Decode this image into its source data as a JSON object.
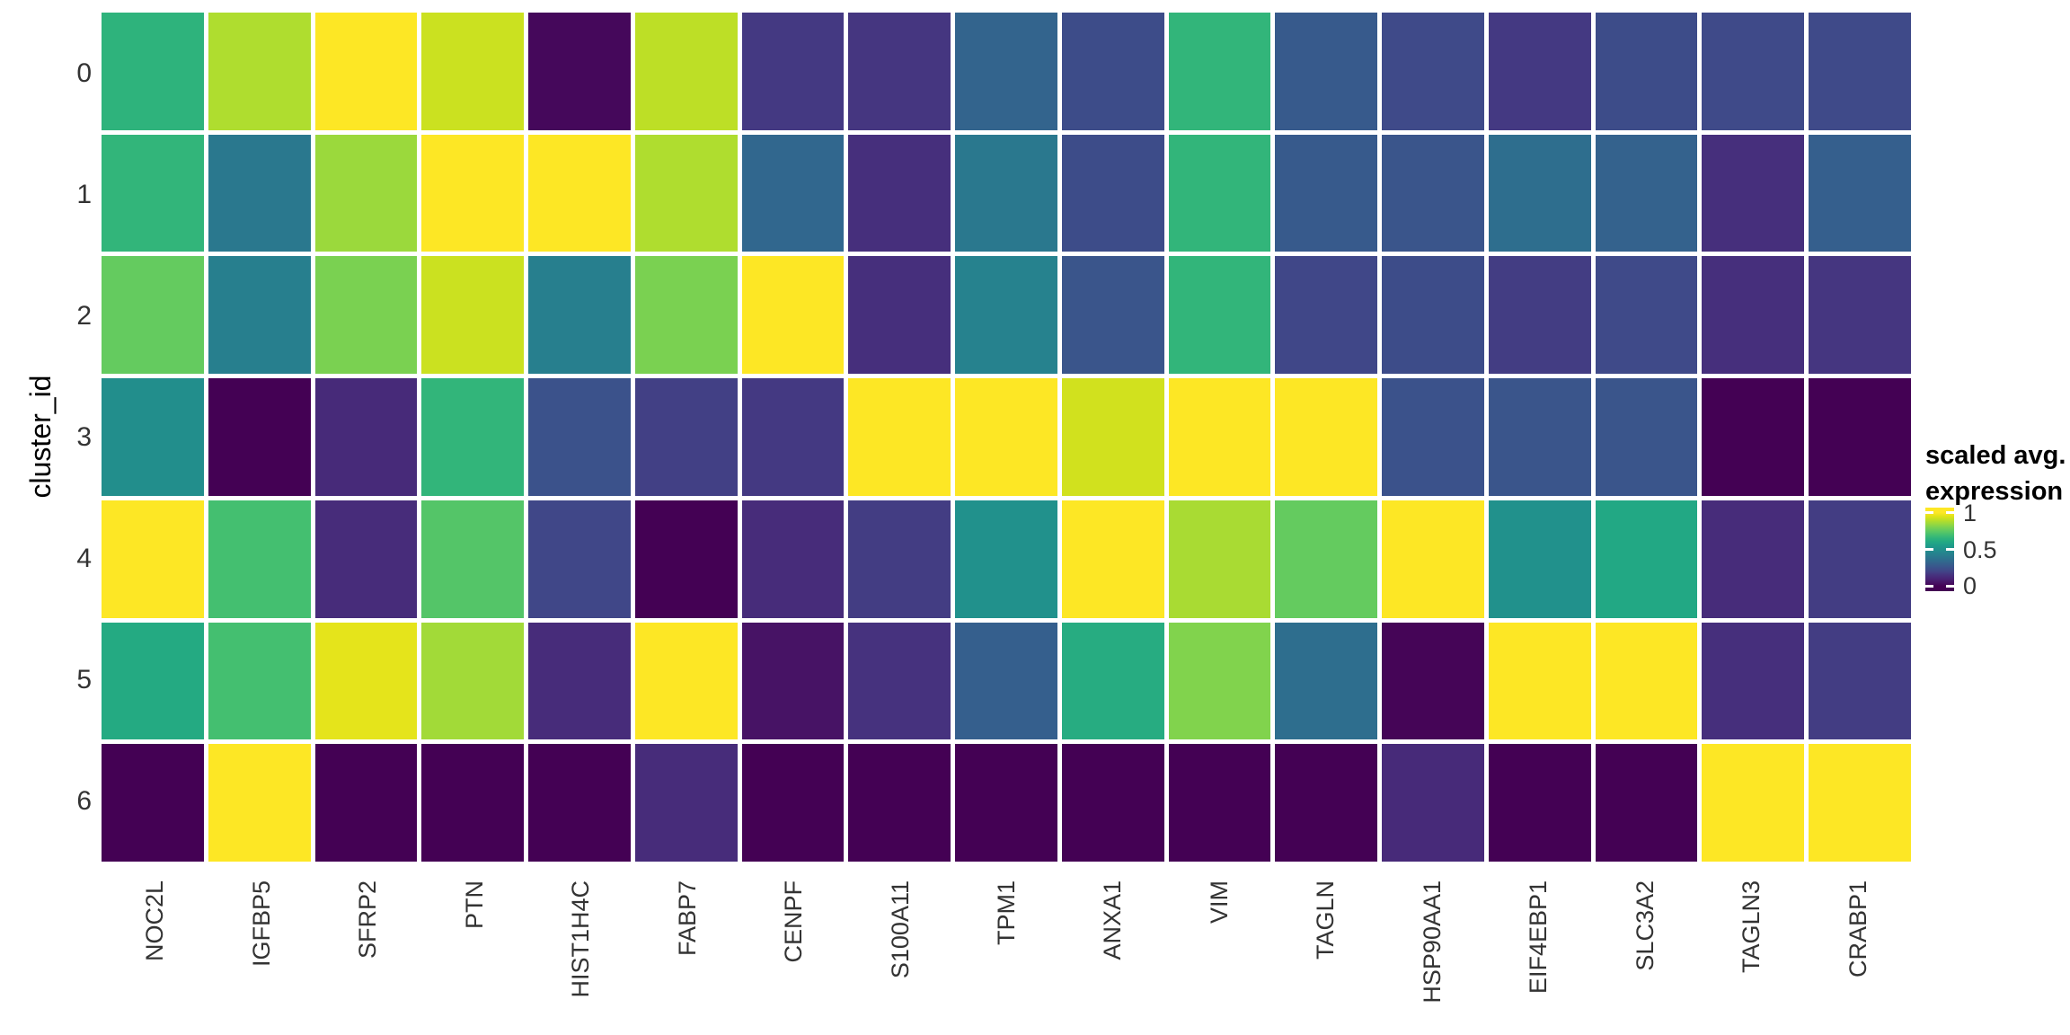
{
  "chart_data": {
    "type": "heatmap",
    "title": "",
    "xlabel": "",
    "ylabel": "cluster_id",
    "x_categories": [
      "NOC2L",
      "IGFBP5",
      "SFRP2",
      "PTN",
      "HIST1H4C",
      "FABP7",
      "CENPF",
      "S100A11",
      "TPM1",
      "ANXA1",
      "VIM",
      "TAGLN",
      "HSP90AA1",
      "EIF4EBP1",
      "SLC3A2",
      "TAGLN3",
      "CRABP1"
    ],
    "y_categories": [
      "0",
      "1",
      "2",
      "3",
      "4",
      "5",
      "6"
    ],
    "values": [
      [
        0.65,
        0.88,
        1.0,
        0.92,
        0.02,
        0.9,
        0.17,
        0.16,
        0.32,
        0.23,
        0.66,
        0.28,
        0.22,
        0.17,
        0.23,
        0.22,
        0.22
      ],
      [
        0.66,
        0.4,
        0.85,
        1.0,
        1.0,
        0.88,
        0.33,
        0.14,
        0.4,
        0.23,
        0.66,
        0.28,
        0.26,
        0.36,
        0.31,
        0.14,
        0.3
      ],
      [
        0.76,
        0.43,
        0.8,
        0.92,
        0.43,
        0.8,
        1.0,
        0.14,
        0.44,
        0.26,
        0.66,
        0.21,
        0.23,
        0.18,
        0.22,
        0.14,
        0.16
      ],
      [
        0.49,
        0.0,
        0.12,
        0.66,
        0.25,
        0.19,
        0.17,
        1.0,
        1.0,
        0.93,
        1.0,
        1.0,
        0.25,
        0.26,
        0.26,
        0.0,
        0.0
      ],
      [
        1.0,
        0.7,
        0.13,
        0.73,
        0.21,
        0.0,
        0.13,
        0.18,
        0.5,
        1.0,
        0.87,
        0.76,
        1.0,
        0.5,
        0.6,
        0.13,
        0.18
      ],
      [
        0.61,
        0.7,
        0.96,
        0.86,
        0.13,
        1.0,
        0.05,
        0.15,
        0.3,
        0.62,
        0.81,
        0.36,
        0.01,
        1.0,
        1.0,
        0.14,
        0.18
      ],
      [
        0.0,
        1.0,
        0.0,
        0.0,
        0.0,
        0.13,
        0.0,
        0.0,
        0.0,
        0.0,
        0.0,
        0.0,
        0.12,
        0.0,
        0.0,
        1.0,
        1.0
      ]
    ],
    "value_range": [
      0,
      1
    ],
    "grid": false,
    "legend_position": "right",
    "legend": {
      "title_line1": "scaled avg.",
      "title_line2": "expression",
      "tick_labels": [
        "1",
        "0.5",
        "0"
      ],
      "tick_values": [
        1,
        0.5,
        0
      ]
    },
    "colors": {
      "background": "#ffffff",
      "axis_text": "#333333",
      "title_text": "#000000",
      "tile_border": "#ffffff",
      "colormap": "viridis",
      "viridis_stops": [
        [
          0.0,
          "#440154"
        ],
        [
          0.05,
          "#471365"
        ],
        [
          0.1,
          "#482475"
        ],
        [
          0.15,
          "#46327e"
        ],
        [
          0.2,
          "#414487"
        ],
        [
          0.25,
          "#3b528b"
        ],
        [
          0.3,
          "#355f8d"
        ],
        [
          0.35,
          "#2f6c8e"
        ],
        [
          0.4,
          "#2a788e"
        ],
        [
          0.45,
          "#25848e"
        ],
        [
          0.5,
          "#21918c"
        ],
        [
          0.55,
          "#1e9c89"
        ],
        [
          0.6,
          "#22a884"
        ],
        [
          0.65,
          "#2eb37c"
        ],
        [
          0.7,
          "#44bf70"
        ],
        [
          0.75,
          "#5ec962"
        ],
        [
          0.8,
          "#7ad151"
        ],
        [
          0.85,
          "#9bd93c"
        ],
        [
          0.9,
          "#bddf26"
        ],
        [
          0.95,
          "#dfe318"
        ],
        [
          1.0,
          "#fde725"
        ]
      ]
    }
  }
}
